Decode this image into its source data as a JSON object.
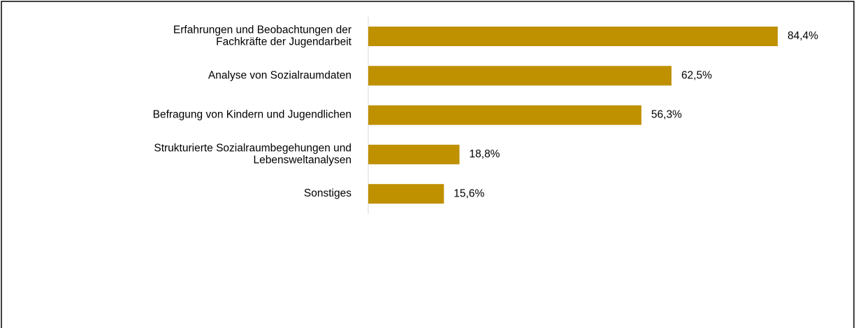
{
  "chart_data": {
    "type": "bar",
    "orientation": "horizontal",
    "categories": [
      "Erfahrungen und Beobachtungen der\nFachkräfte der Jugendarbeit",
      "Analyse von Sozialraumdaten",
      "Befragung von Kindern und Jugendlichen",
      "Strukturierte Sozialraumbegehungen und\nLebensweltanalysen",
      "Sonstiges"
    ],
    "values": [
      84.4,
      62.5,
      56.3,
      18.8,
      15.6
    ],
    "value_labels": [
      "84,4%",
      "62,5%",
      "56,3%",
      "18,8%",
      "15,6%"
    ],
    "color": "#bf9000"
  }
}
